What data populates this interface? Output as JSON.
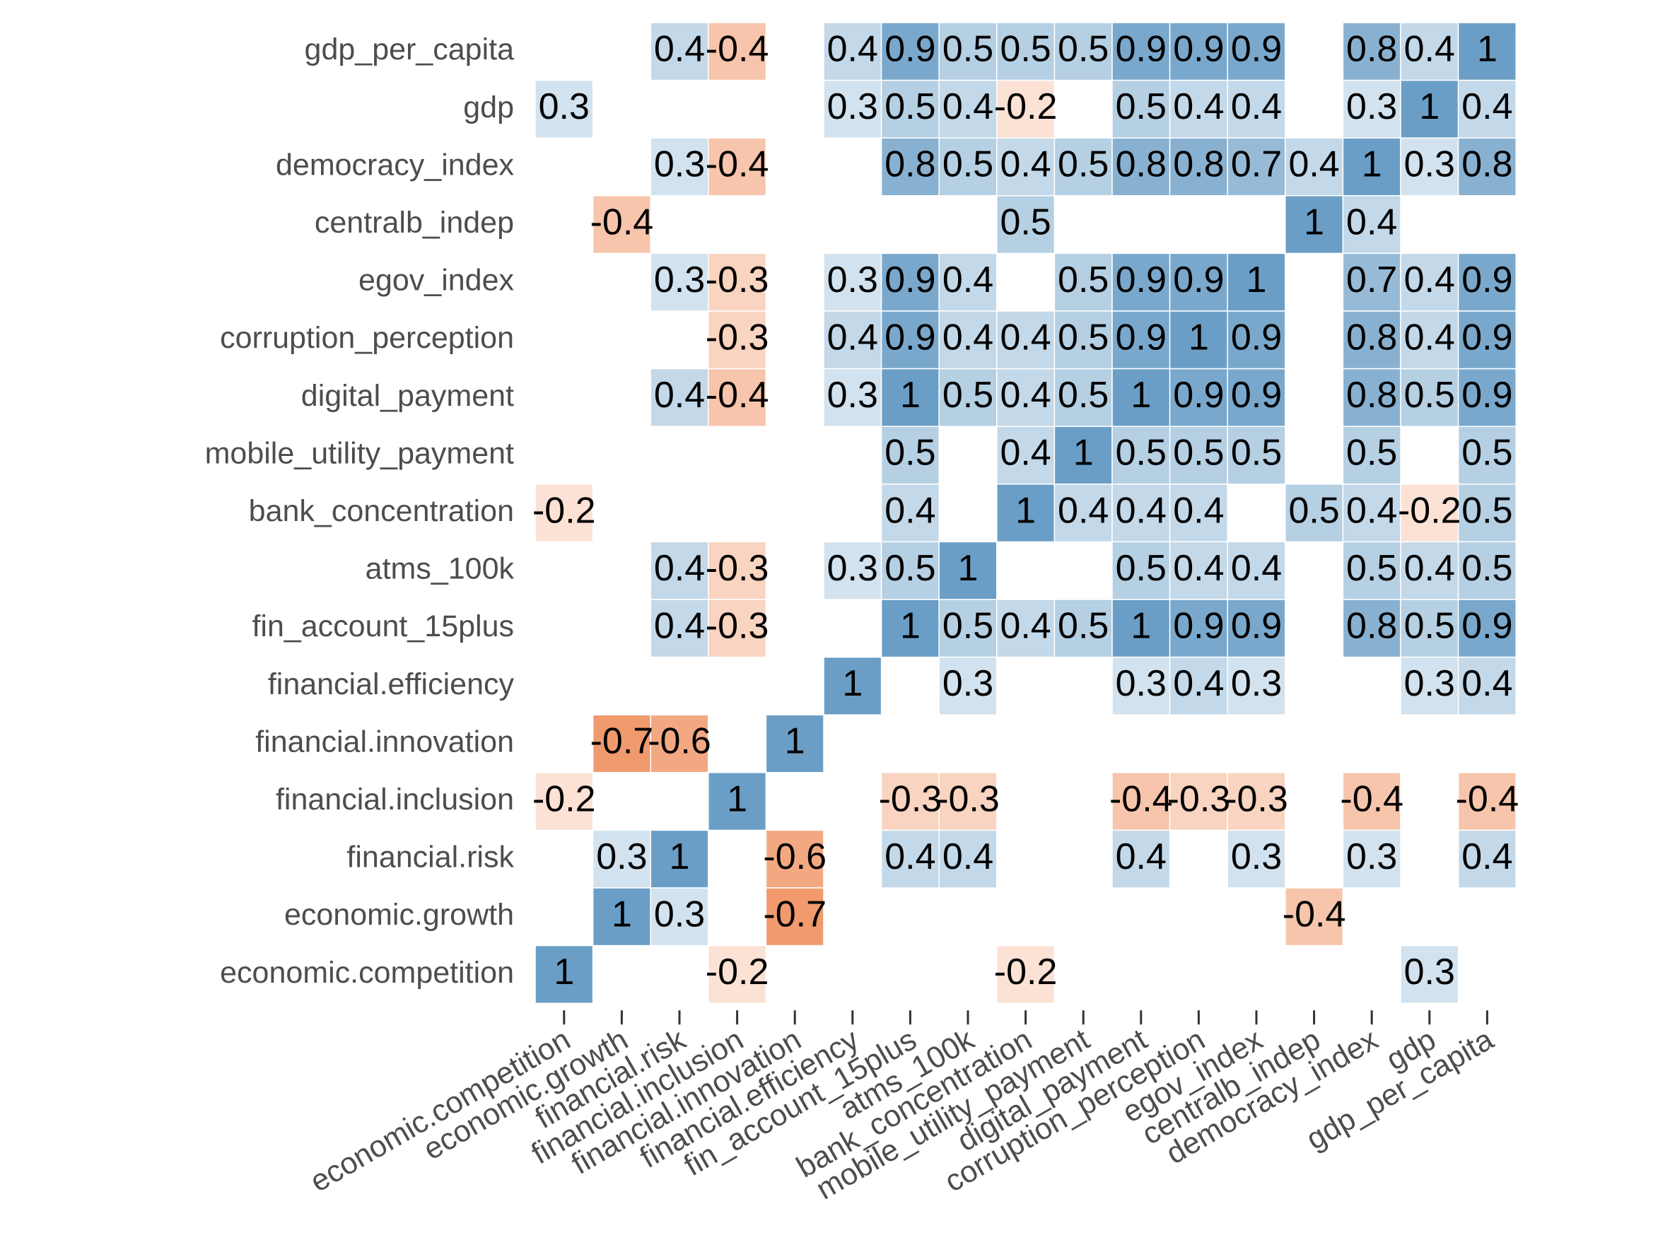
{
  "chart_data": {
    "type": "heatmap",
    "x_categories": [
      "economic.competition",
      "economic.growth",
      "financial.risk",
      "financial.inclusion",
      "financial.innovation",
      "financial.efficiency",
      "fin_account_15plus",
      "atms_100k",
      "bank_concentration",
      "mobile_utility_payment",
      "digital_payment",
      "corruption_perception",
      "egov_index",
      "centralb_indep",
      "democracy_index",
      "gdp",
      "gdp_per_capita"
    ],
    "y_categories": [
      "gdp_per_capita",
      "gdp",
      "democracy_index",
      "centralb_indep",
      "egov_index",
      "corruption_perception",
      "digital_payment",
      "mobile_utility_payment",
      "bank_concentration",
      "atms_100k",
      "fin_account_15plus",
      "financial.efficiency",
      "financial.innovation",
      "financial.inclusion",
      "financial.risk",
      "economic.growth",
      "economic.competition"
    ],
    "values": [
      [
        null,
        null,
        0.4,
        -0.4,
        null,
        0.4,
        0.9,
        0.5,
        0.5,
        0.5,
        0.9,
        0.9,
        0.9,
        null,
        0.8,
        0.4,
        1
      ],
      [
        0.3,
        null,
        null,
        null,
        null,
        0.3,
        0.5,
        0.4,
        -0.2,
        null,
        0.5,
        0.4,
        0.4,
        null,
        0.3,
        1,
        0.4
      ],
      [
        null,
        null,
        0.3,
        -0.4,
        null,
        null,
        0.8,
        0.5,
        0.4,
        0.5,
        0.8,
        0.8,
        0.7,
        0.4,
        1,
        0.3,
        0.8
      ],
      [
        null,
        -0.4,
        null,
        null,
        null,
        null,
        null,
        null,
        0.5,
        null,
        null,
        null,
        null,
        1,
        0.4,
        null,
        null
      ],
      [
        null,
        null,
        0.3,
        -0.3,
        null,
        0.3,
        0.9,
        0.4,
        null,
        0.5,
        0.9,
        0.9,
        1,
        null,
        0.7,
        0.4,
        0.9
      ],
      [
        null,
        null,
        null,
        -0.3,
        null,
        0.4,
        0.9,
        0.4,
        0.4,
        0.5,
        0.9,
        1,
        0.9,
        null,
        0.8,
        0.4,
        0.9
      ],
      [
        null,
        null,
        0.4,
        -0.4,
        null,
        0.3,
        1,
        0.5,
        0.4,
        0.5,
        1,
        0.9,
        0.9,
        null,
        0.8,
        0.5,
        0.9
      ],
      [
        null,
        null,
        null,
        null,
        null,
        null,
        0.5,
        null,
        0.4,
        1,
        0.5,
        0.5,
        0.5,
        null,
        0.5,
        null,
        0.5
      ],
      [
        -0.2,
        null,
        null,
        null,
        null,
        null,
        0.4,
        null,
        1,
        0.4,
        0.4,
        0.4,
        null,
        0.5,
        0.4,
        -0.2,
        0.5
      ],
      [
        null,
        null,
        0.4,
        -0.3,
        null,
        0.3,
        0.5,
        1,
        null,
        null,
        0.5,
        0.4,
        0.4,
        null,
        0.5,
        0.4,
        0.5
      ],
      [
        null,
        null,
        0.4,
        -0.3,
        null,
        null,
        1,
        0.5,
        0.4,
        0.5,
        1,
        0.9,
        0.9,
        null,
        0.8,
        0.5,
        0.9
      ],
      [
        null,
        null,
        null,
        null,
        null,
        1,
        null,
        0.3,
        null,
        null,
        0.3,
        0.4,
        0.3,
        null,
        null,
        0.3,
        0.4
      ],
      [
        null,
        -0.7,
        -0.6,
        null,
        1,
        null,
        null,
        null,
        null,
        null,
        null,
        null,
        null,
        null,
        null,
        null,
        null
      ],
      [
        -0.2,
        null,
        null,
        1,
        null,
        null,
        -0.3,
        -0.3,
        null,
        null,
        -0.4,
        -0.3,
        -0.3,
        null,
        -0.4,
        null,
        -0.4
      ],
      [
        null,
        0.3,
        1,
        null,
        -0.6,
        null,
        0.4,
        0.4,
        null,
        null,
        0.4,
        null,
        0.3,
        null,
        0.3,
        null,
        0.4
      ],
      [
        null,
        1,
        0.3,
        null,
        -0.7,
        null,
        null,
        null,
        null,
        null,
        null,
        null,
        null,
        -0.4,
        null,
        null,
        null
      ],
      [
        1,
        null,
        null,
        -0.2,
        null,
        null,
        null,
        null,
        -0.2,
        null,
        null,
        null,
        null,
        null,
        null,
        0.3,
        null
      ]
    ],
    "positive_color": "#6a9ec6",
    "negative_color": "#ea6f2e"
  }
}
